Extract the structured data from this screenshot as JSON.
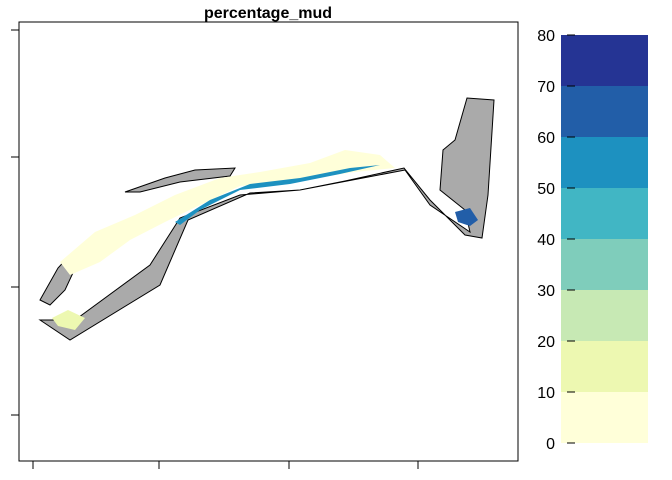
{
  "chart_data": {
    "type": "heatmap",
    "title": "percentage_mud",
    "xlabel": "",
    "ylabel": "",
    "colorkey": {
      "range": [
        0,
        80
      ],
      "ticks": [
        "0",
        "10",
        "20",
        "30",
        "40",
        "50",
        "60",
        "70",
        "80"
      ],
      "bins": [
        {
          "from": 0,
          "to": 10,
          "color": "#ffffd9"
        },
        {
          "from": 10,
          "to": 20,
          "color": "#edf8b1"
        },
        {
          "from": 20,
          "to": 30,
          "color": "#c7e9b4"
        },
        {
          "from": 30,
          "to": 40,
          "color": "#7fcdbb"
        },
        {
          "from": 40,
          "to": 50,
          "color": "#41b6c4"
        },
        {
          "from": 50,
          "to": 60,
          "color": "#1d91c0"
        },
        {
          "from": 60,
          "to": 70,
          "color": "#225ea8"
        },
        {
          "from": 70,
          "to": 80,
          "color": "#253494"
        }
      ]
    },
    "land_color": "#aaaaaa",
    "grid": false
  }
}
